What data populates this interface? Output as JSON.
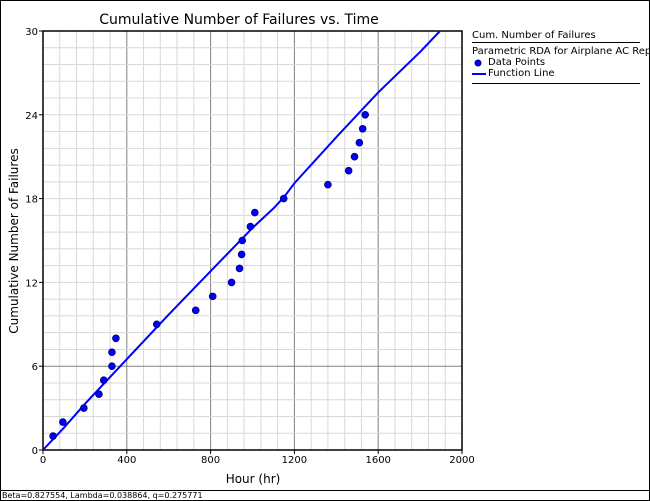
{
  "chart_data": {
    "type": "scatter",
    "title": "Cumulative Number of Failures vs. Time",
    "xlabel": "Hour (hr)",
    "ylabel": "Cumulative Number of Failures",
    "xlim": [
      0,
      2000
    ],
    "ylim": [
      0,
      30
    ],
    "xticks": [
      "0",
      "400",
      "800",
      "1200",
      "1600",
      "2000"
    ],
    "yticks": [
      "0",
      "6",
      "12",
      "18",
      "24",
      "30"
    ],
    "grid": true,
    "legend_position": "right",
    "colors": {
      "points": "#0000ff",
      "line": "#0000ff",
      "point_outline": "#000080"
    },
    "series": [
      {
        "name": "Data Points",
        "kind": "points",
        "x": [
          48,
          95,
          195,
          267,
          290,
          329,
          329,
          348,
          543,
          729,
          810,
          900,
          938,
          948,
          951,
          990,
          1011,
          1149,
          1360,
          1459,
          1487,
          1510,
          1526,
          1538
        ],
        "y": [
          1,
          2,
          3,
          4,
          5,
          6,
          7,
          8,
          9,
          10,
          11,
          12,
          13,
          14,
          15,
          16,
          17,
          18,
          19,
          20,
          21,
          22,
          23,
          24
        ]
      },
      {
        "name": "Function Line",
        "kind": "line",
        "x": [
          0,
          100,
          200,
          400,
          600,
          800,
          1000,
          1100,
          1150,
          1200,
          1400,
          1600,
          1800,
          1895
        ],
        "y": [
          0,
          1.6,
          3.3,
          6.5,
          9.7,
          12.8,
          15.9,
          17.3,
          18.1,
          19.1,
          22.4,
          25.6,
          28.5,
          30
        ]
      }
    ]
  },
  "legend": {
    "title": "Cum. Number of Failures",
    "subtitle": "Parametric RDA for Airplane AC Repair",
    "items": [
      "Data Points",
      "Function Line"
    ]
  },
  "status": "Beta=0.827554, Lambda=0.038864, q=0.275771"
}
